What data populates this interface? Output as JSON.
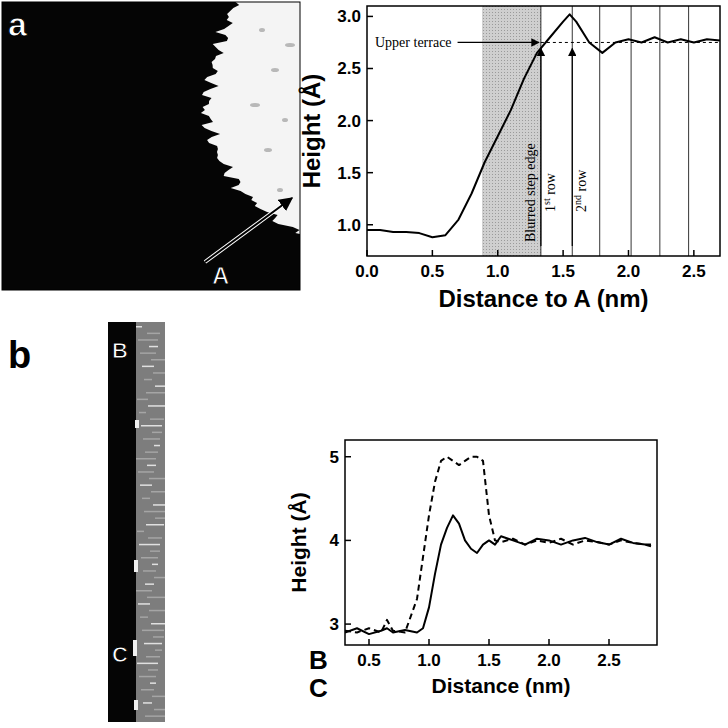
{
  "chart_data": [
    {
      "type": "line",
      "x_label": "Distance to A (nm)",
      "y_label": "Height (Å)",
      "x": [
        0,
        0.1,
        0.2,
        0.3,
        0.4,
        0.5,
        0.6,
        0.7,
        0.8,
        0.9,
        1.0,
        1.1,
        1.2,
        1.3,
        1.4,
        1.5,
        1.55,
        1.6,
        1.7,
        1.8,
        1.9,
        2.0,
        2.1,
        2.2,
        2.3,
        2.4,
        2.5,
        2.6,
        2.7
      ],
      "values": [
        0.95,
        0.95,
        0.93,
        0.93,
        0.92,
        0.88,
        0.9,
        1.05,
        1.3,
        1.6,
        1.85,
        2.1,
        2.4,
        2.65,
        2.8,
        2.95,
        3.02,
        2.95,
        2.75,
        2.65,
        2.75,
        2.78,
        2.75,
        2.8,
        2.75,
        2.78,
        2.75,
        2.78,
        2.77
      ],
      "color": "#000000",
      "xlim": [
        0,
        2.7
      ],
      "ylim": [
        0.7,
        3.1
      ],
      "xticks": [
        {
          "value": 0,
          "label": "0.0"
        },
        0.5,
        {
          "value": 1,
          "label": "1.0"
        },
        1.5,
        {
          "value": 2,
          "label": "2.0"
        },
        2.5
      ],
      "yticks": [
        {
          "value": 1,
          "label": "1.0"
        },
        1.5,
        {
          "value": 2,
          "label": "2.0"
        },
        2.5,
        {
          "value": 3,
          "label": "3.0"
        }
      ],
      "grid": false,
      "annotations": [
        {
          "type": "hline",
          "text": "Upper terrace",
          "y": 2.75
        },
        {
          "type": "band",
          "text": "Blurred step edge",
          "x": [
            0.88,
            1.33
          ]
        },
        {
          "type": "vlines",
          "x": [
            1.33,
            1.57,
            1.78,
            2.02,
            2.24,
            2.46
          ]
        },
        {
          "type": "arrow",
          "text": "1st row",
          "x": 1.33
        },
        {
          "type": "arrow",
          "text": "2nd row",
          "x": 1.57
        }
      ]
    },
    {
      "type": "line",
      "x_label": "Distance (nm)",
      "y_label": "Height (Å)",
      "x": [
        0.3,
        0.4,
        0.5,
        0.6,
        0.65,
        0.7,
        0.8,
        0.9,
        0.95,
        1.0,
        1.05,
        1.1,
        1.15,
        1.2,
        1.25,
        1.3,
        1.35,
        1.4,
        1.45,
        1.5,
        1.55,
        1.6,
        1.7,
        1.8,
        1.9,
        2.0,
        2.1,
        2.2,
        2.3,
        2.4,
        2.5,
        2.6,
        2.7,
        2.8,
        2.85
      ],
      "series": [
        {
          "name": "B",
          "color": "#000000",
          "line_style": "solid",
          "values": [
            2.9,
            2.95,
            2.88,
            2.92,
            2.95,
            2.9,
            2.93,
            2.9,
            2.95,
            3.2,
            3.6,
            3.95,
            4.15,
            4.3,
            4.2,
            4.0,
            3.9,
            3.85,
            3.95,
            4.0,
            3.95,
            4.05,
            4.0,
            3.95,
            4.02,
            4.0,
            3.95,
            4.0,
            4.03,
            3.98,
            3.95,
            4.02,
            3.97,
            3.95,
            3.95
          ]
        },
        {
          "name": "C",
          "color": "#000000",
          "line_style": "dashed",
          "values": [
            2.92,
            2.9,
            2.95,
            2.9,
            3.05,
            2.92,
            2.9,
            3.3,
            3.8,
            4.3,
            4.7,
            4.95,
            5.0,
            4.95,
            4.9,
            4.95,
            5.0,
            5.0,
            4.95,
            4.3,
            4.0,
            3.98,
            4.02,
            3.95,
            4.0,
            3.97,
            4.02,
            3.95,
            4.0,
            3.98,
            3.95,
            4.0,
            3.97,
            3.95,
            3.93
          ]
        }
      ],
      "xlim": [
        0.3,
        2.9
      ],
      "ylim": [
        2.75,
        5.2
      ],
      "xticks": [
        0.5,
        {
          "value": 1,
          "label": "1.0"
        },
        1.5,
        {
          "value": 2,
          "label": "2.0"
        },
        2.5
      ],
      "yticks": [
        3,
        4,
        5
      ],
      "grid": false,
      "legend": "bottom left"
    }
  ],
  "figure": {
    "panels": [
      {
        "letter": "a",
        "image_labels": [
          "A"
        ]
      },
      {
        "letter": "b",
        "image_labels": [
          "B",
          "C"
        ]
      }
    ]
  }
}
